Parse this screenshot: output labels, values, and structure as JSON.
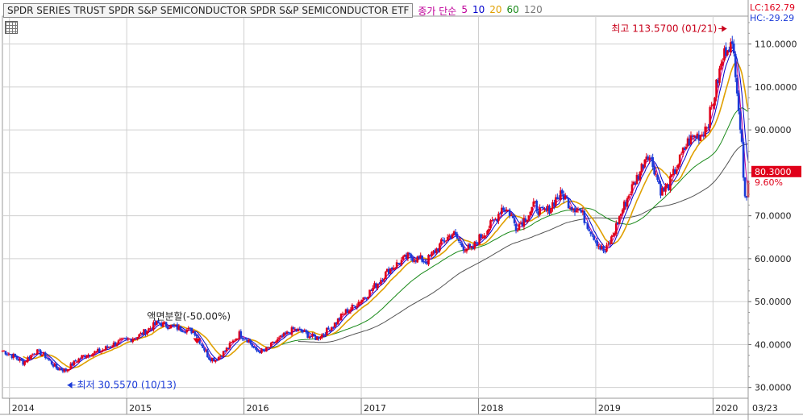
{
  "header": {
    "title": "SPDR SERIES TRUST SPDR S&P SEMICONDUCTOR  SPDR S&P SEMICONDUCTOR ETF",
    "ma_label": "종가 단순",
    "ma_periods": [
      "5",
      "10",
      "20",
      "60",
      "120"
    ],
    "ma_colors": [
      "#c0009a",
      "#0000cc",
      "#e0a000",
      "#1a8a1a",
      "#555555"
    ]
  },
  "corner": {
    "lc": "LC:162.79",
    "hc": "HC:-29.29"
  },
  "annotations": {
    "high": "최고 113.5700 (01/21)",
    "low": "최저 30.5570 (10/13)",
    "split": "액면분할(-50.00%)"
  },
  "price_tag": {
    "value": "80.3000",
    "pct": "9.60%"
  },
  "colors": {
    "up": "#e0001a",
    "down": "#1a3ad8",
    "grid": "#d0d0d0"
  },
  "chart_data": {
    "type": "candlestick",
    "title": "SPDR SERIES TRUST SPDR S&P SEMICONDUCTOR  SPDR S&P SEMICONDUCTOR ETF",
    "x_tick_labels": [
      "2014",
      "2015",
      "2016",
      "2017",
      "2018",
      "2019",
      "2020",
      "03/23"
    ],
    "y_tick_labels": [
      "30.0000",
      "40.0000",
      "50.0000",
      "60.0000",
      "70.0000",
      "80.0000",
      "90.0000",
      "100.0000",
      "110.0000"
    ],
    "ylim": [
      27.5,
      116.5
    ],
    "price_path": [
      [
        2013.95,
        38.5
      ],
      [
        2014.05,
        37.0
      ],
      [
        2014.12,
        35.8
      ],
      [
        2014.22,
        38.5
      ],
      [
        2014.3,
        37.5
      ],
      [
        2014.4,
        34.5
      ],
      [
        2014.48,
        34.0
      ],
      [
        2014.56,
        36.0
      ],
      [
        2014.62,
        37.2
      ],
      [
        2014.7,
        38.0
      ],
      [
        2014.78,
        38.5
      ],
      [
        2014.85,
        39.6
      ],
      [
        2014.92,
        40.5
      ],
      [
        2015.0,
        41.0
      ],
      [
        2015.1,
        42.0
      ],
      [
        2015.18,
        43.5
      ],
      [
        2015.26,
        45.0
      ],
      [
        2015.34,
        44.5
      ],
      [
        2015.42,
        44.0
      ],
      [
        2015.5,
        43.5
      ],
      [
        2015.58,
        43.0
      ],
      [
        2015.64,
        40.0
      ],
      [
        2015.7,
        37.0
      ],
      [
        2015.76,
        36.5
      ],
      [
        2015.84,
        38.5
      ],
      [
        2015.9,
        40.5
      ],
      [
        2015.96,
        42.5
      ],
      [
        2016.04,
        41.0
      ],
      [
        2016.1,
        38.5
      ],
      [
        2016.18,
        38.5
      ],
      [
        2016.26,
        40.5
      ],
      [
        2016.34,
        42.0
      ],
      [
        2016.42,
        43.5
      ],
      [
        2016.5,
        43.0
      ],
      [
        2016.56,
        42.0
      ],
      [
        2016.62,
        41.5
      ],
      [
        2016.7,
        43.0
      ],
      [
        2016.78,
        45.0
      ],
      [
        2016.86,
        47.5
      ],
      [
        2016.92,
        48.5
      ],
      [
        2017.0,
        50.5
      ],
      [
        2017.08,
        52.5
      ],
      [
        2017.16,
        55.0
      ],
      [
        2017.24,
        57.5
      ],
      [
        2017.32,
        59.0
      ],
      [
        2017.4,
        60.5
      ],
      [
        2017.48,
        60.0
      ],
      [
        2017.56,
        59.5
      ],
      [
        2017.62,
        61.5
      ],
      [
        2017.7,
        64.0
      ],
      [
        2017.78,
        66.0
      ],
      [
        2017.86,
        63.0
      ],
      [
        2017.94,
        62.0
      ],
      [
        2018.0,
        64.5
      ],
      [
        2018.08,
        67.0
      ],
      [
        2018.14,
        69.0
      ],
      [
        2018.2,
        72.0
      ],
      [
        2018.26,
        71.0
      ],
      [
        2018.32,
        67.5
      ],
      [
        2018.4,
        69.5
      ],
      [
        2018.48,
        72.5
      ],
      [
        2018.54,
        70.5
      ],
      [
        2018.6,
        71.5
      ],
      [
        2018.66,
        74.0
      ],
      [
        2018.72,
        75.0
      ],
      [
        2018.78,
        72.5
      ],
      [
        2018.86,
        71.5
      ],
      [
        2018.94,
        67.5
      ],
      [
        2019.0,
        64.5
      ],
      [
        2019.04,
        62.5
      ],
      [
        2019.08,
        61.5
      ],
      [
        2019.14,
        65.0
      ],
      [
        2019.22,
        71.0
      ],
      [
        2019.3,
        76.0
      ],
      [
        2019.38,
        80.5
      ],
      [
        2019.44,
        85.0
      ],
      [
        2019.5,
        81.0
      ],
      [
        2019.56,
        75.5
      ],
      [
        2019.62,
        77.0
      ],
      [
        2019.7,
        82.0
      ],
      [
        2019.78,
        87.0
      ],
      [
        2019.84,
        88.5
      ],
      [
        2019.9,
        89.0
      ],
      [
        2019.96,
        92.0
      ],
      [
        2020.02,
        99.0
      ],
      [
        2020.06,
        104.0
      ],
      [
        2020.1,
        108.0
      ],
      [
        2020.13,
        110.5
      ],
      [
        2020.16,
        109.0
      ],
      [
        2020.18,
        107.0
      ],
      [
        2020.2,
        102.0
      ],
      [
        2020.22,
        95.0
      ],
      [
        2020.24,
        88.0
      ],
      [
        2020.26,
        80.0
      ],
      [
        2020.28,
        73.5
      ],
      [
        2020.3,
        78.0
      ]
    ]
  }
}
